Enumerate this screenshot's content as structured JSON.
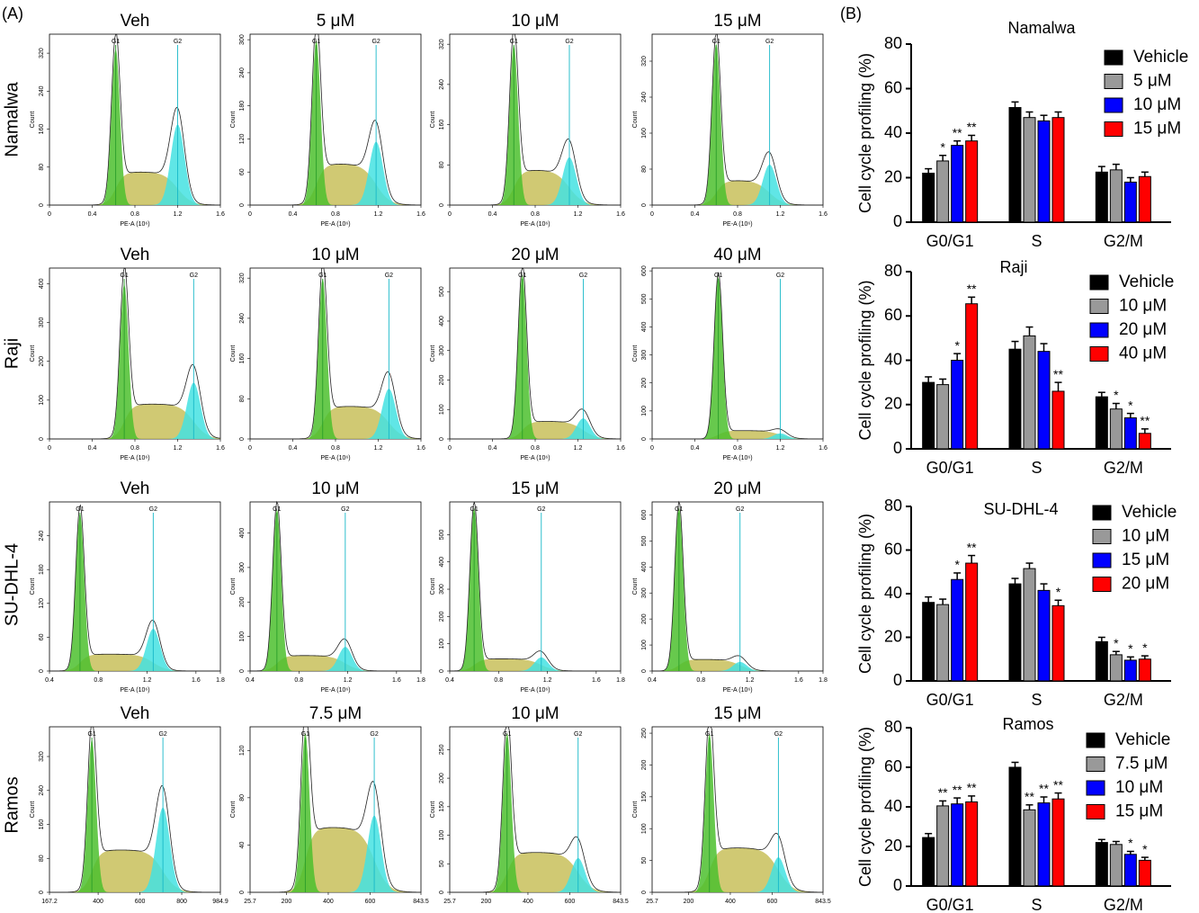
{
  "panel_labels": [
    "(A)",
    "(B)"
  ],
  "flow": {
    "rows": [
      {
        "label": "Namalwa",
        "xlabel": "PE-A (10⁶)",
        "ylabel": "Count",
        "panels": [
          {
            "title": "Veh",
            "xlim": [
              0,
              1.6
            ],
            "xticks": [
              0,
              0.4,
              0.8,
              1.2,
              1.6
            ],
            "ylim": [
              0,
              360
            ],
            "yticks": [
              0,
              80,
              160,
              240,
              320
            ],
            "g1": {
              "label": "G1",
              "x": 0.62,
              "count": 330
            },
            "g2": {
              "label": "G2",
              "x": 1.2,
              "count": 170
            },
            "s_count": 70
          },
          {
            "title": "5 μM",
            "xlim": [
              0,
              1.6
            ],
            "xticks": [
              0,
              0.4,
              0.8,
              1.2,
              1.6
            ],
            "ylim": [
              0,
              310
            ],
            "yticks": [
              0,
              60,
              120,
              180,
              240,
              300
            ],
            "g1": {
              "label": "G1",
              "x": 0.62,
              "count": 300
            },
            "g2": {
              "label": "G2",
              "x": 1.18,
              "count": 115
            },
            "s_count": 75
          },
          {
            "title": "10 μM",
            "xlim": [
              0,
              1.6
            ],
            "xticks": [
              0,
              0.4,
              0.8,
              1.2,
              1.6
            ],
            "ylim": [
              0,
              340
            ],
            "yticks": [
              0,
              80,
              160,
              240,
              320
            ],
            "g1": {
              "label": "G1",
              "x": 0.6,
              "count": 320
            },
            "g2": {
              "label": "G2",
              "x": 1.12,
              "count": 95
            },
            "s_count": 70
          },
          {
            "title": "15 μM",
            "xlim": [
              0,
              1.6
            ],
            "xticks": [
              0,
              0.4,
              0.8,
              1.2,
              1.6
            ],
            "ylim": [
              0,
              380
            ],
            "yticks": [
              0,
              80,
              160,
              240,
              320
            ],
            "g1": {
              "label": "G1",
              "x": 0.6,
              "count": 360
            },
            "g2": {
              "label": "G2",
              "x": 1.1,
              "count": 90
            },
            "s_count": 55
          }
        ]
      },
      {
        "label": "Raji",
        "xlabel": "PE-A (10⁶)",
        "ylabel": "Count",
        "panels": [
          {
            "title": "Veh",
            "xlim": [
              0,
              1.6
            ],
            "xticks": [
              0,
              0.4,
              0.8,
              1.2,
              1.6
            ],
            "ylim": [
              0,
              440
            ],
            "yticks": [
              0,
              100,
              200,
              300,
              400
            ],
            "g1": {
              "label": "G1",
              "x": 0.7,
              "count": 400
            },
            "g2": {
              "label": "G2",
              "x": 1.35,
              "count": 145
            },
            "s_count": 90
          },
          {
            "title": "10 μM",
            "xlim": [
              0,
              1.6
            ],
            "xticks": [
              0,
              0.4,
              0.8,
              1.2,
              1.6
            ],
            "ylim": [
              0,
              340
            ],
            "yticks": [
              0,
              80,
              160,
              240,
              320
            ],
            "g1": {
              "label": "G1",
              "x": 0.68,
              "count": 320
            },
            "g2": {
              "label": "G2",
              "x": 1.3,
              "count": 100
            },
            "s_count": 65
          },
          {
            "title": "20 μM",
            "xlim": [
              0,
              1.6
            ],
            "xticks": [
              0,
              0.4,
              0.8,
              1.2,
              1.6
            ],
            "ylim": [
              0,
              580
            ],
            "yticks": [
              0,
              100,
              200,
              300,
              400,
              500
            ],
            "g1": {
              "label": "G1",
              "x": 0.68,
              "count": 560
            },
            "g2": {
              "label": "G2",
              "x": 1.25,
              "count": 70
            },
            "s_count": 60
          },
          {
            "title": "40 μM",
            "xlim": [
              0,
              1.6
            ],
            "xticks": [
              0,
              0.4,
              0.8,
              1.2,
              1.6
            ],
            "ylim": [
              0,
              610
            ],
            "yticks": [
              0,
              100,
              200,
              300,
              400,
              500,
              600
            ],
            "g1": {
              "label": "G1",
              "x": 0.62,
              "count": 580
            },
            "g2": {
              "label": "G2",
              "x": 1.2,
              "count": 20
            },
            "s_count": 30
          }
        ]
      },
      {
        "label": "SU-DHL-4",
        "xlabel": "PE-A (10⁶)",
        "ylabel": "Count",
        "panels": [
          {
            "title": "Veh",
            "xlim": [
              0.4,
              1.8
            ],
            "xticks": [
              0.4,
              0.8,
              1.2,
              1.6,
              1.8
            ],
            "ylim": [
              0,
              300
            ],
            "yticks": [
              0,
              60,
              120,
              180,
              240
            ],
            "g1": {
              "label": "G1",
              "x": 0.65,
              "count": 280
            },
            "g2": {
              "label": "G2",
              "x": 1.25,
              "count": 75
            },
            "s_count": 30
          },
          {
            "title": "10 μM",
            "xlim": [
              0.4,
              1.8
            ],
            "xticks": [
              0.4,
              0.8,
              1.2,
              1.6,
              1.8
            ],
            "ylim": [
              0,
              490
            ],
            "yticks": [
              0,
              100,
              200,
              300,
              400
            ],
            "g1": {
              "label": "G1",
              "x": 0.62,
              "count": 470
            },
            "g2": {
              "label": "G2",
              "x": 1.18,
              "count": 70
            },
            "s_count": 45
          },
          {
            "title": "15 μM",
            "xlim": [
              0.4,
              1.8
            ],
            "xticks": [
              0.4,
              0.8,
              1.2,
              1.6,
              1.8
            ],
            "ylim": [
              0,
              620
            ],
            "yticks": [
              0,
              100,
              200,
              300,
              400,
              500
            ],
            "g1": {
              "label": "G1",
              "x": 0.6,
              "count": 600
            },
            "g2": {
              "label": "G2",
              "x": 1.15,
              "count": 50
            },
            "s_count": 45
          },
          {
            "title": "20 μM",
            "xlim": [
              0.4,
              1.8
            ],
            "xticks": [
              0.4,
              0.8,
              1.2,
              1.6,
              1.8
            ],
            "ylim": [
              0,
              650
            ],
            "yticks": [
              0,
              100,
              200,
              300,
              400,
              500,
              600
            ],
            "g1": {
              "label": "G1",
              "x": 0.62,
              "count": 630
            },
            "g2": {
              "label": "G2",
              "x": 1.12,
              "count": 35
            },
            "s_count": 45
          }
        ]
      },
      {
        "label": "Ramos",
        "ylabel": "Count",
        "panels": [
          {
            "title": "Veh",
            "xlim": [
              167.2,
              984.9
            ],
            "xticks": [
              167.2,
              400,
              600,
              800,
              984.9
            ],
            "ylim": [
              0,
              390
            ],
            "yticks": [
              0,
              80,
              160,
              240,
              320
            ],
            "g1": {
              "label": "G1",
              "x": 370,
              "count": 360
            },
            "g2": {
              "label": "G2",
              "x": 710,
              "count": 200
            },
            "s_count": 100
          },
          {
            "title": "7.5 μM",
            "xlim": [
              25.7,
              843.5
            ],
            "xticks": [
              25.7,
              200,
              400,
              600,
              843.5
            ],
            "ylim": [
              0,
              140
            ],
            "yticks": [
              0,
              40,
              80,
              120
            ],
            "g1": {
              "label": "G1",
              "x": 290,
              "count": 135
            },
            "g2": {
              "label": "G2",
              "x": 620,
              "count": 65
            },
            "s_count": 55
          },
          {
            "title": "10 μM",
            "xlim": [
              25.7,
              843.5
            ],
            "xticks": [
              25.7,
              200,
              400,
              600,
              843.5
            ],
            "ylim": [
              0,
              290
            ],
            "yticks": [
              0,
              50,
              100,
              150,
              200,
              250
            ],
            "g1": {
              "label": "G1",
              "x": 300,
              "count": 280
            },
            "g2": {
              "label": "G2",
              "x": 640,
              "count": 60
            },
            "s_count": 70
          },
          {
            "title": "15 μM",
            "xlim": [
              25.7,
              843.5
            ],
            "xticks": [
              25.7,
              200,
              400,
              600,
              843.5
            ],
            "ylim": [
              0,
              260
            ],
            "yticks": [
              0,
              50,
              100,
              150,
              200,
              250
            ],
            "g1": {
              "label": "G1",
              "x": 300,
              "count": 250
            },
            "g2": {
              "label": "G2",
              "x": 630,
              "count": 55
            },
            "s_count": 70
          }
        ]
      }
    ]
  },
  "chart_data": [
    {
      "type": "bar",
      "title": "Namalwa",
      "ylabel": "Cell cycle profiling (%)",
      "categories": [
        "G0/G1",
        "S",
        "G2/M"
      ],
      "ylim": [
        0,
        80
      ],
      "yticks": [
        0,
        20,
        40,
        60,
        80
      ],
      "series": [
        {
          "name": "Vehicle",
          "color": "#000000",
          "values": [
            22,
            51.5,
            22.5
          ],
          "errors": [
            2,
            2.5,
            2.5
          ],
          "significance": [
            null,
            null,
            null
          ]
        },
        {
          "name": "5 μM",
          "color": "#999999",
          "values": [
            27.5,
            47,
            23.5
          ],
          "errors": [
            2.5,
            2.5,
            2.5
          ],
          "significance": [
            "*",
            null,
            null
          ]
        },
        {
          "name": "10 μM",
          "color": "#0000ff",
          "values": [
            34.5,
            45.5,
            18
          ],
          "errors": [
            2,
            2.5,
            2
          ],
          "significance": [
            "**",
            null,
            null
          ]
        },
        {
          "name": "15 μM",
          "color": "#ff0000",
          "values": [
            36.5,
            47,
            20.5
          ],
          "errors": [
            2.5,
            2.5,
            2
          ],
          "significance": [
            "**",
            null,
            null
          ]
        }
      ]
    },
    {
      "type": "bar",
      "title": "Raji",
      "ylabel": "Cell cycle profiling (%)",
      "categories": [
        "G0/G1",
        "S",
        "G2/M"
      ],
      "ylim": [
        0,
        80
      ],
      "yticks": [
        0,
        20,
        40,
        60,
        80
      ],
      "series": [
        {
          "name": "Vehicle",
          "color": "#000000",
          "values": [
            30,
            45,
            23.5
          ],
          "errors": [
            2.5,
            3.5,
            2
          ],
          "significance": [
            null,
            null,
            null
          ]
        },
        {
          "name": "10 μM",
          "color": "#999999",
          "values": [
            29,
            51,
            18
          ],
          "errors": [
            2.5,
            4,
            2.5
          ],
          "significance": [
            null,
            null,
            "*"
          ]
        },
        {
          "name": "20 μM",
          "color": "#0000ff",
          "values": [
            40,
            44,
            14
          ],
          "errors": [
            3,
            3.5,
            2
          ],
          "significance": [
            "*",
            null,
            "*"
          ]
        },
        {
          "name": "40 μM",
          "color": "#ff0000",
          "values": [
            65.5,
            26,
            7
          ],
          "errors": [
            3,
            4,
            2
          ],
          "significance": [
            "**",
            "**",
            "**"
          ]
        }
      ]
    },
    {
      "type": "bar",
      "title": "SU-DHL-4",
      "ylabel": "Cell cycle profiling (%)",
      "categories": [
        "G0/G1",
        "S",
        "G2/M"
      ],
      "ylim": [
        0,
        80
      ],
      "yticks": [
        0,
        20,
        40,
        60,
        80
      ],
      "series": [
        {
          "name": "Vehicle",
          "color": "#000000",
          "values": [
            36,
            44.5,
            18
          ],
          "errors": [
            2.5,
            2.5,
            2
          ],
          "significance": [
            null,
            null,
            null
          ]
        },
        {
          "name": "10 μM",
          "color": "#999999",
          "values": [
            35,
            51.5,
            12
          ],
          "errors": [
            2.5,
            2.5,
            1.5
          ],
          "significance": [
            null,
            null,
            "*"
          ]
        },
        {
          "name": "15 μM",
          "color": "#0000ff",
          "values": [
            46.5,
            41.5,
            9.5
          ],
          "errors": [
            3,
            3,
            1.5
          ],
          "significance": [
            "*",
            null,
            "*"
          ]
        },
        {
          "name": "20 μM",
          "color": "#ff0000",
          "values": [
            54,
            34.5,
            10
          ],
          "errors": [
            3.5,
            2.5,
            1.5
          ],
          "significance": [
            "**",
            "*",
            "*"
          ]
        }
      ]
    },
    {
      "type": "bar",
      "title": "Ramos",
      "ylabel": "Cell cycle profiling (%)",
      "categories": [
        "G0/G1",
        "S",
        "G2/M"
      ],
      "ylim": [
        0,
        80
      ],
      "yticks": [
        0,
        20,
        40,
        60,
        80
      ],
      "series": [
        {
          "name": "Vehicle",
          "color": "#000000",
          "values": [
            24.5,
            60,
            22
          ],
          "errors": [
            2,
            2.5,
            1.5
          ],
          "significance": [
            null,
            null,
            null
          ]
        },
        {
          "name": "7.5 μM",
          "color": "#999999",
          "values": [
            40.5,
            38.5,
            21
          ],
          "errors": [
            2.5,
            2.5,
            1.5
          ],
          "significance": [
            "**",
            "**",
            null
          ]
        },
        {
          "name": "10 μM",
          "color": "#0000ff",
          "values": [
            41.5,
            42,
            16
          ],
          "errors": [
            3,
            3,
            1.5
          ],
          "significance": [
            "**",
            "**",
            "*"
          ]
        },
        {
          "name": "15 μM",
          "color": "#ff0000",
          "values": [
            42.5,
            44,
            13
          ],
          "errors": [
            3,
            3,
            1.5
          ],
          "significance": [
            "**",
            "**",
            "*"
          ]
        }
      ]
    }
  ]
}
